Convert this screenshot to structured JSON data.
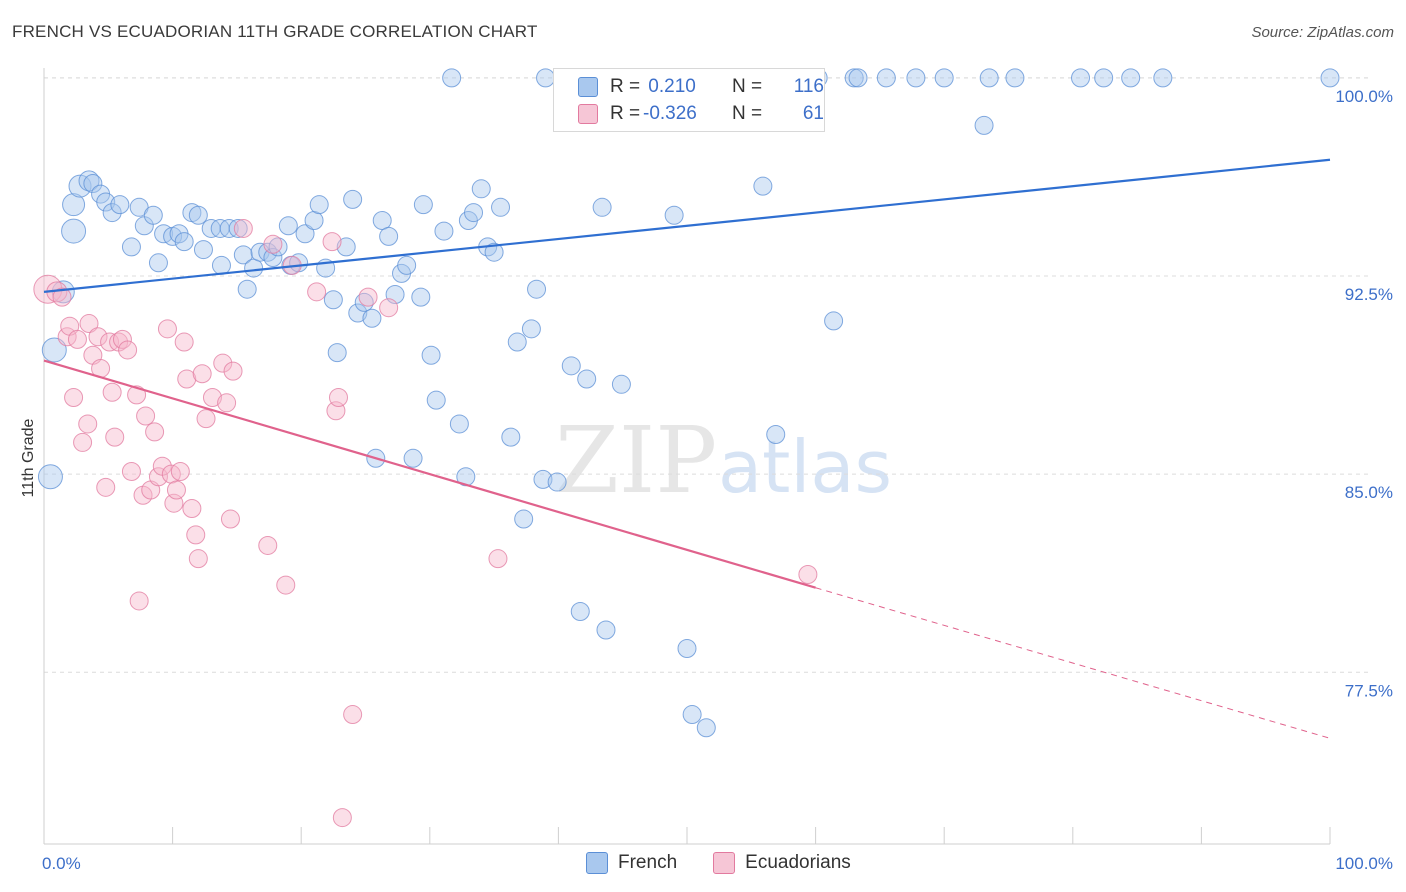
{
  "title": "FRENCH VS ECUADORIAN 11TH GRADE CORRELATION CHART",
  "source": "Source: ZipAtlas.com",
  "watermark": {
    "zip": "ZIP",
    "atlas": "atlas"
  },
  "legend_top": {
    "rows": [
      {
        "r_label": "R =",
        "r_value": " 0.210",
        "n_label": "N =",
        "n_value": "116"
      },
      {
        "r_label": "R =",
        "r_value": "-0.326",
        "n_label": "N =",
        "n_value": "61"
      }
    ]
  },
  "legend_bottom": [
    {
      "label": "French"
    },
    {
      "label": "Ecuadorians"
    }
  ],
  "colors": {
    "french_fill": "#a9c8ee",
    "french_stroke": "#5b8fd6",
    "french_line": "#2f6fd1",
    "ecu_fill": "#f6b8cc",
    "ecu_stroke": "#e27a9f",
    "ecu_line": "#e0628c",
    "tick_label": "#3d6fc9",
    "grid": "#dcdcdc"
  },
  "chart_data": {
    "type": "scatter",
    "xlabel": "",
    "ylabel": "11th Grade",
    "xlim": [
      0,
      100
    ],
    "ylim": [
      71.0,
      100.6
    ],
    "x_tick_labels": [
      "0.0%",
      "100.0%"
    ],
    "y_ticks": [
      77.5,
      85.0,
      92.5,
      100.0
    ],
    "y_tick_labels": [
      "77.5%",
      "85.0%",
      "92.5%",
      "100.0%"
    ],
    "grid": true,
    "legend_position": "top-center",
    "series": [
      {
        "name": "French",
        "r": 0.21,
        "n": 116,
        "trend": {
          "x": [
            0,
            100
          ],
          "y": [
            91.9,
            96.9
          ]
        },
        "points": [
          [
            0.5,
            84.9,
            12
          ],
          [
            0.8,
            89.7,
            12
          ],
          [
            1.5,
            91.9,
            11
          ],
          [
            2.3,
            94.2,
            12
          ],
          [
            2.3,
            95.2,
            11
          ],
          [
            2.8,
            95.9,
            11
          ],
          [
            3.5,
            96.1,
            10
          ],
          [
            3.8,
            96.0,
            9
          ],
          [
            4.4,
            95.6,
            9
          ],
          [
            4.8,
            95.3,
            9
          ],
          [
            5.3,
            94.9,
            9
          ],
          [
            5.9,
            95.2,
            9
          ],
          [
            6.8,
            93.6,
            9
          ],
          [
            7.4,
            95.1,
            9
          ],
          [
            7.8,
            94.4,
            9
          ],
          [
            8.5,
            94.8,
            9
          ],
          [
            8.9,
            93.0,
            9
          ],
          [
            9.3,
            94.1,
            9
          ],
          [
            10.0,
            94.0,
            9
          ],
          [
            10.5,
            94.1,
            9
          ],
          [
            10.9,
            93.8,
            9
          ],
          [
            11.5,
            94.9,
            9
          ],
          [
            12.0,
            94.8,
            9
          ],
          [
            12.4,
            93.5,
            9
          ],
          [
            13.0,
            94.3,
            9
          ],
          [
            13.7,
            94.3,
            9
          ],
          [
            13.8,
            92.9,
            9
          ],
          [
            14.4,
            94.3,
            9
          ],
          [
            15.1,
            94.3,
            9
          ],
          [
            15.5,
            93.3,
            9
          ],
          [
            15.8,
            92.0,
            9
          ],
          [
            16.3,
            92.8,
            9
          ],
          [
            16.8,
            93.4,
            9
          ],
          [
            17.4,
            93.4,
            9
          ],
          [
            17.8,
            93.2,
            9
          ],
          [
            18.2,
            93.6,
            9
          ],
          [
            19.2,
            92.9,
            9
          ],
          [
            19.0,
            94.4,
            9
          ],
          [
            19.8,
            93.0,
            9
          ],
          [
            20.3,
            94.1,
            9
          ],
          [
            21.0,
            94.6,
            9
          ],
          [
            21.4,
            95.2,
            9
          ],
          [
            21.9,
            92.8,
            9
          ],
          [
            22.5,
            91.6,
            9
          ],
          [
            22.8,
            89.6,
            9
          ],
          [
            23.5,
            93.6,
            9
          ],
          [
            24.0,
            95.4,
            9
          ],
          [
            24.4,
            91.1,
            9
          ],
          [
            24.9,
            91.5,
            9
          ],
          [
            25.5,
            90.9,
            9
          ],
          [
            25.8,
            85.6,
            9
          ],
          [
            26.3,
            94.6,
            9
          ],
          [
            26.8,
            94.0,
            9
          ],
          [
            27.3,
            91.8,
            9
          ],
          [
            27.8,
            92.6,
            9
          ],
          [
            28.2,
            92.9,
            9
          ],
          [
            28.7,
            85.6,
            9
          ],
          [
            29.3,
            91.7,
            9
          ],
          [
            29.5,
            95.2,
            9
          ],
          [
            30.1,
            89.5,
            9
          ],
          [
            30.5,
            87.8,
            9
          ],
          [
            31.1,
            94.2,
            9
          ],
          [
            31.7,
            100.0,
            9
          ],
          [
            32.3,
            86.9,
            9
          ],
          [
            32.8,
            84.9,
            9
          ],
          [
            33.0,
            94.6,
            9
          ],
          [
            33.4,
            94.9,
            9
          ],
          [
            34.0,
            95.8,
            9
          ],
          [
            34.5,
            93.6,
            9
          ],
          [
            35.0,
            93.4,
            9
          ],
          [
            35.5,
            95.1,
            9
          ],
          [
            36.3,
            86.4,
            9
          ],
          [
            36.8,
            90.0,
            9
          ],
          [
            37.3,
            83.3,
            9
          ],
          [
            37.9,
            90.5,
            9
          ],
          [
            38.3,
            92.0,
            9
          ],
          [
            38.8,
            84.8,
            9
          ],
          [
            39.0,
            100.0,
            9
          ],
          [
            39.9,
            84.7,
            9
          ],
          [
            40.5,
            100.0,
            9
          ],
          [
            41.0,
            89.1,
            9
          ],
          [
            41.7,
            79.8,
            9
          ],
          [
            42.2,
            88.6,
            9
          ],
          [
            43.0,
            100.0,
            9
          ],
          [
            43.4,
            95.1,
            9
          ],
          [
            43.7,
            79.1,
            9
          ],
          [
            44.9,
            88.4,
            9
          ],
          [
            45.5,
            100.0,
            9
          ],
          [
            47.3,
            100.0,
            9
          ],
          [
            49.0,
            94.8,
            9
          ],
          [
            50.0,
            78.4,
            9
          ],
          [
            50.4,
            75.9,
            9
          ],
          [
            51.5,
            75.4,
            9
          ],
          [
            53.0,
            100.0,
            9
          ],
          [
            53.8,
            100.0,
            9
          ],
          [
            55.5,
            100.0,
            9
          ],
          [
            55.9,
            95.9,
            9
          ],
          [
            56.9,
            86.5,
            9
          ],
          [
            57.7,
            100.0,
            9
          ],
          [
            60.2,
            100.0,
            9
          ],
          [
            61.4,
            90.8,
            9
          ],
          [
            63.0,
            100.0,
            9
          ],
          [
            63.3,
            100.0,
            9
          ],
          [
            65.5,
            100.0,
            9
          ],
          [
            67.8,
            100.0,
            9
          ],
          [
            70.0,
            100.0,
            9
          ],
          [
            73.1,
            98.2,
            9
          ],
          [
            73.5,
            100.0,
            9
          ],
          [
            75.5,
            100.0,
            9
          ],
          [
            80.6,
            100.0,
            9
          ],
          [
            82.4,
            100.0,
            9
          ],
          [
            84.5,
            100.0,
            9
          ],
          [
            87.0,
            100.0,
            9
          ],
          [
            100.0,
            100.0,
            9
          ]
        ]
      },
      {
        "name": "Ecuadorians",
        "r": -0.326,
        "n": 61,
        "trend": {
          "x": [
            0,
            60
          ],
          "y": [
            89.3,
            80.7
          ]
        },
        "trend_dashed": {
          "x": [
            60,
            100
          ],
          "y": [
            80.7,
            75.0
          ]
        },
        "points": [
          [
            0.3,
            92.0,
            14
          ],
          [
            1.0,
            91.9,
            10
          ],
          [
            1.4,
            91.7,
            9
          ],
          [
            1.8,
            90.2,
            9
          ],
          [
            2.0,
            90.6,
            9
          ],
          [
            2.3,
            87.9,
            9
          ],
          [
            2.6,
            90.1,
            9
          ],
          [
            3.0,
            86.2,
            9
          ],
          [
            3.4,
            86.9,
            9
          ],
          [
            3.5,
            90.7,
            9
          ],
          [
            3.8,
            89.5,
            9
          ],
          [
            4.2,
            90.2,
            9
          ],
          [
            4.4,
            89.0,
            9
          ],
          [
            4.8,
            84.5,
            9
          ],
          [
            5.1,
            90.0,
            9
          ],
          [
            5.3,
            88.1,
            9
          ],
          [
            5.5,
            86.4,
            9
          ],
          [
            5.8,
            90.0,
            9
          ],
          [
            6.1,
            90.1,
            9
          ],
          [
            6.5,
            89.7,
            9
          ],
          [
            6.8,
            85.1,
            9
          ],
          [
            7.2,
            88.0,
            9
          ],
          [
            7.4,
            80.2,
            9
          ],
          [
            7.7,
            84.2,
            9
          ],
          [
            7.9,
            87.2,
            9
          ],
          [
            8.3,
            84.4,
            9
          ],
          [
            8.6,
            86.6,
            9
          ],
          [
            8.9,
            84.9,
            9
          ],
          [
            9.2,
            85.3,
            9
          ],
          [
            9.6,
            90.5,
            9
          ],
          [
            9.9,
            85.0,
            9
          ],
          [
            10.1,
            83.9,
            9
          ],
          [
            10.3,
            84.4,
            9
          ],
          [
            10.6,
            85.1,
            9
          ],
          [
            10.9,
            90.0,
            9
          ],
          [
            11.1,
            88.6,
            9
          ],
          [
            11.5,
            83.7,
            9
          ],
          [
            11.8,
            82.7,
            9
          ],
          [
            12.0,
            81.8,
            9
          ],
          [
            12.3,
            88.8,
            9
          ],
          [
            12.6,
            87.1,
            9
          ],
          [
            13.1,
            87.9,
            9
          ],
          [
            13.9,
            89.2,
            9
          ],
          [
            14.2,
            87.7,
            9
          ],
          [
            14.5,
            83.3,
            9
          ],
          [
            14.7,
            88.9,
            9
          ],
          [
            15.5,
            94.3,
            9
          ],
          [
            17.4,
            82.3,
            9
          ],
          [
            17.8,
            93.7,
            9
          ],
          [
            18.8,
            80.8,
            9
          ],
          [
            19.3,
            92.9,
            9
          ],
          [
            21.2,
            91.9,
            9
          ],
          [
            22.4,
            93.8,
            9
          ],
          [
            22.7,
            87.4,
            9
          ],
          [
            22.9,
            87.9,
            9
          ],
          [
            23.2,
            72.0,
            9
          ],
          [
            24.0,
            75.9,
            9
          ],
          [
            25.2,
            91.7,
            9
          ],
          [
            26.8,
            91.3,
            9
          ],
          [
            35.3,
            81.8,
            9
          ],
          [
            59.4,
            81.2,
            9
          ]
        ]
      }
    ]
  }
}
